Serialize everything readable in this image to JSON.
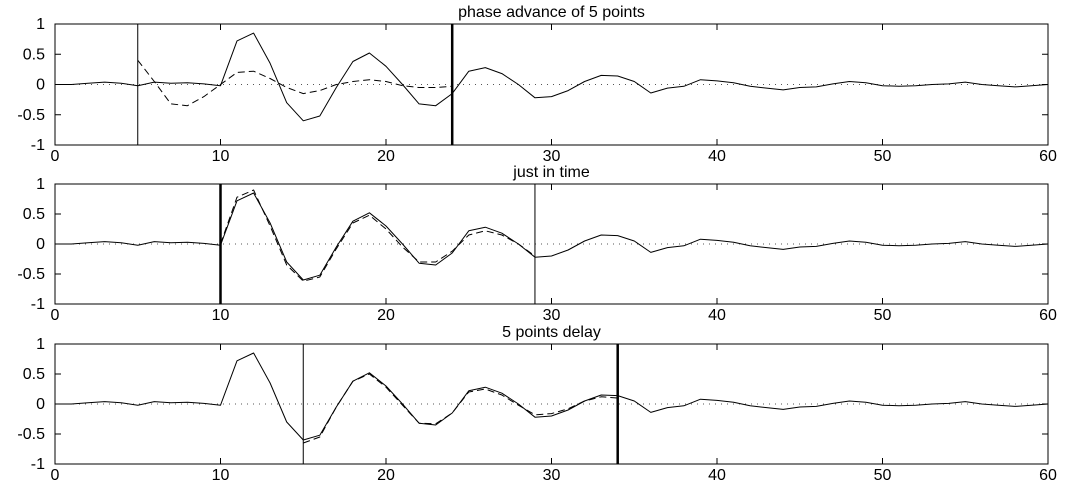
{
  "chart_data": [
    {
      "type": "line",
      "title": "phase advance of 5 points",
      "xlim": [
        0,
        60
      ],
      "ylim": [
        -1,
        1
      ],
      "xticks": [
        0,
        10,
        20,
        30,
        40,
        50,
        60
      ],
      "yticks": [
        -1,
        -0.5,
        0,
        0.5,
        1
      ],
      "xtick_labels": [
        "0",
        "10",
        "20",
        "30",
        "40",
        "50",
        "60"
      ],
      "ytick_labels": [
        "-1",
        "-0.5",
        "0",
        "0.5",
        "1"
      ],
      "grid": false,
      "reference_line_y": 0,
      "vlines": [
        {
          "x": 5,
          "weight": "thin"
        },
        {
          "x": 24,
          "weight": "thick"
        }
      ],
      "series": [
        {
          "style": "solid",
          "x": [
            0,
            1,
            2,
            3,
            4,
            5,
            6,
            7,
            8,
            9,
            10,
            11,
            12,
            13,
            14,
            15,
            16,
            17,
            18,
            19,
            20,
            21,
            22,
            23,
            24,
            25,
            26,
            27,
            28,
            29,
            30,
            31,
            32,
            33,
            34,
            35,
            36,
            37,
            38,
            39,
            40,
            41,
            42,
            43,
            44,
            45,
            46,
            47,
            48,
            49,
            50,
            51,
            52,
            53,
            54,
            55,
            56,
            57,
            58,
            59,
            60
          ],
          "y": [
            0,
            0,
            0.02,
            0.04,
            0.02,
            -0.02,
            0.04,
            0.02,
            0.03,
            0.01,
            -0.02,
            0.72,
            0.85,
            0.35,
            -0.3,
            -0.6,
            -0.52,
            -0.05,
            0.38,
            0.52,
            0.3,
            0,
            -0.32,
            -0.35,
            -0.15,
            0.22,
            0.28,
            0.18,
            0,
            -0.22,
            -0.2,
            -0.1,
            0.05,
            0.15,
            0.14,
            0.05,
            -0.14,
            -0.06,
            -0.03,
            0.08,
            0.06,
            0.03,
            -0.03,
            -0.06,
            -0.09,
            -0.05,
            -0.04,
            0.01,
            0.05,
            0.03,
            -0.02,
            -0.03,
            -0.02,
            0,
            0.01,
            0.04,
            0,
            -0.02,
            -0.04,
            -0.02,
            0
          ]
        },
        {
          "style": "dashed",
          "x": [
            5,
            6,
            7,
            8,
            9,
            10,
            11,
            12,
            13,
            14,
            15,
            16,
            17,
            18,
            19,
            20,
            21,
            22,
            23,
            24
          ],
          "y": [
            0.4,
            0.05,
            -0.32,
            -0.35,
            -0.2,
            0,
            0.2,
            0.22,
            0.1,
            -0.05,
            -0.15,
            -0.1,
            0,
            0.05,
            0.08,
            0.05,
            -0.02,
            -0.05,
            -0.05,
            -0.03
          ]
        }
      ]
    },
    {
      "type": "line",
      "title": "just in time",
      "xlim": [
        0,
        60
      ],
      "ylim": [
        -1,
        1
      ],
      "xticks": [
        0,
        10,
        20,
        30,
        40,
        50,
        60
      ],
      "yticks": [
        -1,
        -0.5,
        0,
        0.5,
        1
      ],
      "xtick_labels": [
        "0",
        "10",
        "20",
        "30",
        "40",
        "50",
        "60"
      ],
      "ytick_labels": [
        "-1",
        "-0.5",
        "0",
        "0.5",
        "1"
      ],
      "grid": false,
      "reference_line_y": 0,
      "vlines": [
        {
          "x": 10,
          "weight": "thick"
        },
        {
          "x": 29,
          "weight": "thin"
        }
      ],
      "series": [
        {
          "style": "solid",
          "x": [
            0,
            1,
            2,
            3,
            4,
            5,
            6,
            7,
            8,
            9,
            10,
            11,
            12,
            13,
            14,
            15,
            16,
            17,
            18,
            19,
            20,
            21,
            22,
            23,
            24,
            25,
            26,
            27,
            28,
            29,
            30,
            31,
            32,
            33,
            34,
            35,
            36,
            37,
            38,
            39,
            40,
            41,
            42,
            43,
            44,
            45,
            46,
            47,
            48,
            49,
            50,
            51,
            52,
            53,
            54,
            55,
            56,
            57,
            58,
            59,
            60
          ],
          "y": [
            0,
            0,
            0.02,
            0.04,
            0.02,
            -0.02,
            0.04,
            0.02,
            0.03,
            0.01,
            -0.02,
            0.72,
            0.85,
            0.35,
            -0.3,
            -0.6,
            -0.52,
            -0.05,
            0.38,
            0.52,
            0.3,
            0,
            -0.32,
            -0.35,
            -0.15,
            0.22,
            0.28,
            0.18,
            0,
            -0.22,
            -0.2,
            -0.1,
            0.05,
            0.15,
            0.14,
            0.05,
            -0.14,
            -0.06,
            -0.03,
            0.08,
            0.06,
            0.03,
            -0.03,
            -0.06,
            -0.09,
            -0.05,
            -0.04,
            0.01,
            0.05,
            0.03,
            -0.02,
            -0.03,
            -0.02,
            0,
            0.01,
            0.04,
            0,
            -0.02,
            -0.04,
            -0.02,
            0
          ]
        },
        {
          "style": "dashed",
          "x": [
            10,
            11,
            12,
            13,
            14,
            15,
            16,
            17,
            18,
            19,
            20,
            21,
            22,
            23,
            24,
            25,
            26,
            27,
            28,
            29
          ],
          "y": [
            0,
            0.78,
            0.9,
            0.3,
            -0.35,
            -0.62,
            -0.55,
            -0.08,
            0.35,
            0.48,
            0.25,
            -0.05,
            -0.3,
            -0.3,
            -0.12,
            0.15,
            0.22,
            0.15,
            0,
            -0.2
          ]
        }
      ]
    },
    {
      "type": "line",
      "title": "5 points delay",
      "xlim": [
        0,
        60
      ],
      "ylim": [
        -1,
        1
      ],
      "xticks": [
        0,
        10,
        20,
        30,
        40,
        50,
        60
      ],
      "yticks": [
        -1,
        -0.5,
        0,
        0.5,
        1
      ],
      "xtick_labels": [
        "0",
        "10",
        "20",
        "30",
        "40",
        "50",
        "60"
      ],
      "ytick_labels": [
        "-1",
        "-0.5",
        "0",
        "0.5",
        "1"
      ],
      "grid": false,
      "reference_line_y": 0,
      "vlines": [
        {
          "x": 15,
          "weight": "thin"
        },
        {
          "x": 34,
          "weight": "thick"
        }
      ],
      "series": [
        {
          "style": "solid",
          "x": [
            0,
            1,
            2,
            3,
            4,
            5,
            6,
            7,
            8,
            9,
            10,
            11,
            12,
            13,
            14,
            15,
            16,
            17,
            18,
            19,
            20,
            21,
            22,
            23,
            24,
            25,
            26,
            27,
            28,
            29,
            30,
            31,
            32,
            33,
            34,
            35,
            36,
            37,
            38,
            39,
            40,
            41,
            42,
            43,
            44,
            45,
            46,
            47,
            48,
            49,
            50,
            51,
            52,
            53,
            54,
            55,
            56,
            57,
            58,
            59,
            60
          ],
          "y": [
            0,
            0,
            0.02,
            0.04,
            0.02,
            -0.02,
            0.04,
            0.02,
            0.03,
            0.01,
            -0.02,
            0.72,
            0.85,
            0.35,
            -0.3,
            -0.6,
            -0.52,
            -0.05,
            0.38,
            0.52,
            0.3,
            0,
            -0.32,
            -0.35,
            -0.15,
            0.22,
            0.28,
            0.18,
            0,
            -0.22,
            -0.2,
            -0.1,
            0.05,
            0.15,
            0.14,
            0.05,
            -0.14,
            -0.06,
            -0.03,
            0.08,
            0.06,
            0.03,
            -0.03,
            -0.06,
            -0.09,
            -0.05,
            -0.04,
            0.01,
            0.05,
            0.03,
            -0.02,
            -0.03,
            -0.02,
            0,
            0.01,
            0.04,
            0,
            -0.02,
            -0.04,
            -0.02,
            0
          ]
        },
        {
          "style": "dashed",
          "x": [
            15,
            16,
            17,
            18,
            19,
            20,
            21,
            22,
            23,
            24,
            25,
            26,
            27,
            28,
            29,
            30,
            31,
            32,
            33,
            34
          ],
          "y": [
            -0.65,
            -0.55,
            -0.05,
            0.38,
            0.5,
            0.28,
            -0.02,
            -0.32,
            -0.33,
            -0.15,
            0.2,
            0.25,
            0.15,
            -0.02,
            -0.18,
            -0.16,
            -0.08,
            0.05,
            0.12,
            0.1
          ]
        }
      ]
    }
  ]
}
